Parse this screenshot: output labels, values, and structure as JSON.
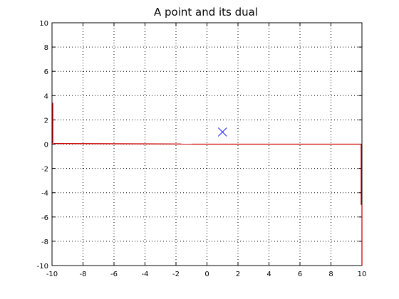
{
  "chart_data": {
    "type": "line",
    "title": "A point and its dual",
    "xlabel": "",
    "ylabel": "",
    "xlim": [
      -10,
      10
    ],
    "ylim": [
      -10,
      10
    ],
    "xticks": [
      -10,
      -8,
      -6,
      -4,
      -2,
      0,
      2,
      4,
      6,
      8,
      10
    ],
    "yticks": [
      -10,
      -8,
      -6,
      -4,
      -2,
      0,
      2,
      4,
      6,
      8,
      10
    ],
    "xtick_labels": [
      "-10",
      "-8",
      "-6",
      "-4",
      "-2",
      "0",
      "2",
      "4",
      "6",
      "8",
      "10"
    ],
    "ytick_labels": [
      "-10",
      "-8",
      "-6",
      "-4",
      "-2",
      "0",
      "2",
      "4",
      "6",
      "8",
      "10"
    ],
    "grid": true,
    "grid_style": "dotted",
    "series": [
      {
        "type": "scatter",
        "marker": "x",
        "color": "#0000ff",
        "points": [
          {
            "x": 1,
            "y": 1
          }
        ]
      },
      {
        "type": "line",
        "color": "#cc0000",
        "segments": [
          [
            {
              "x": -9.95,
              "y": 3.4
            },
            {
              "x": -9.95,
              "y": 0.05
            }
          ],
          [
            {
              "x": -9.9,
              "y": 0.05
            },
            {
              "x": -1,
              "y": 0.01
            }
          ],
          [
            {
              "x": -1,
              "y": 0
            },
            {
              "x": 9.95,
              "y": 0
            }
          ],
          [
            {
              "x": 9.95,
              "y": 0
            },
            {
              "x": 9.95,
              "y": -5
            }
          ],
          [
            {
              "x": 10,
              "y": -5
            },
            {
              "x": 10,
              "y": -10
            }
          ]
        ]
      }
    ]
  }
}
